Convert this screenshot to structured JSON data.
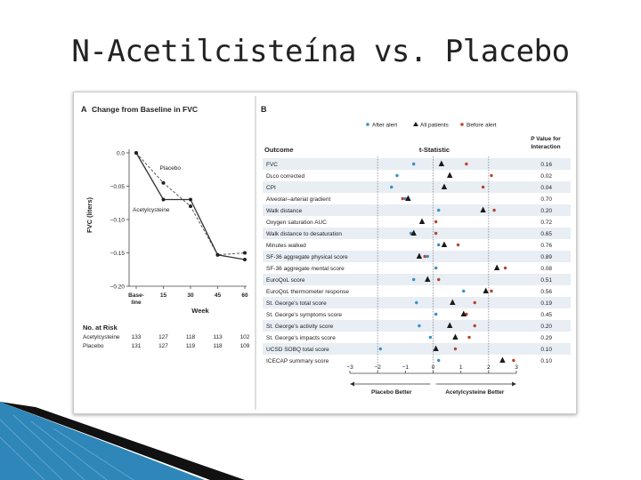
{
  "slide": {
    "title": "N-Acetilcisteína vs. Placebo"
  },
  "colors": {
    "after_alert": "#3a8fc4",
    "all_patients": "#1a1a1a",
    "before_alert": "#b5452f",
    "row_band": "#e8eef4",
    "deco_blue": "#2f86b8",
    "deco_black": "#111111"
  },
  "chart_data": [
    {
      "type": "line",
      "panel_label": "A",
      "title": "Change from Baseline in FVC",
      "ylabel": "FVC (liters)",
      "xlabel": "Week",
      "categories": [
        "Baseline",
        "15",
        "30",
        "45",
        "60"
      ],
      "x": [
        0,
        15,
        30,
        45,
        60
      ],
      "ylim": [
        -0.2,
        0.0
      ],
      "yticks": [
        "0.0",
        "−0.05",
        "−0.10",
        "−0.15",
        "−0.20"
      ],
      "ytick_values": [
        0.0,
        -0.05,
        -0.1,
        -0.15,
        -0.2
      ],
      "series": [
        {
          "name": "Placebo",
          "values": [
            0.0,
            -0.045,
            -0.08,
            -0.153,
            -0.15
          ],
          "style": "dashed"
        },
        {
          "name": "Acetylcysteine",
          "values": [
            0.0,
            -0.07,
            -0.07,
            -0.153,
            -0.16
          ],
          "style": "solid"
        }
      ],
      "at_risk": {
        "title": "No. at Risk",
        "rows": [
          {
            "label": "Acetylcysteine",
            "values": [
              "133",
              "127",
              "118",
              "113",
              "102"
            ]
          },
          {
            "label": "Placebo",
            "values": [
              "131",
              "127",
              "119",
              "118",
              "109"
            ]
          }
        ]
      }
    },
    {
      "type": "scatter",
      "panel_label": "B",
      "legend": [
        "After alert",
        "All patients",
        "Before alert"
      ],
      "legend_position": "top",
      "column_headers": {
        "outcome": "Outcome",
        "stat": "t-Statistic",
        "p": "P Value for Interaction"
      },
      "xlim": [
        -3,
        3
      ],
      "xticks": [
        "−3",
        "−2",
        "−1",
        "0",
        "1",
        "2",
        "3"
      ],
      "xtick_values": [
        -3,
        -2,
        -1,
        0,
        1,
        2,
        3
      ],
      "x_annotations": {
        "left": "Placebo Better",
        "right": "Acetylcysteine Better"
      },
      "rows": [
        {
          "outcome": "FVC",
          "after": -0.7,
          "all": 0.3,
          "before": 1.2,
          "p": "0.16"
        },
        {
          "outcome": "Dʟco corrected",
          "after": -1.3,
          "all": 0.6,
          "before": 2.1,
          "p": "0.02"
        },
        {
          "outcome": "CPI",
          "after": -1.5,
          "all": 0.4,
          "before": 1.8,
          "p": "0.04"
        },
        {
          "outcome": "Alveolar–arterial gradient",
          "after": -1.0,
          "all": -0.9,
          "before": -1.1,
          "p": "0.70"
        },
        {
          "outcome": "Walk distance",
          "after": 0.2,
          "all": 1.8,
          "before": 2.2,
          "p": "0.20"
        },
        {
          "outcome": "Oxygen saturation AUC",
          "after": -0.4,
          "all": -0.4,
          "before": 0.1,
          "p": "0.72"
        },
        {
          "outcome": "Walk distance to desaturation",
          "after": -0.8,
          "all": -0.7,
          "before": 0.1,
          "p": "0.65"
        },
        {
          "outcome": "Minutes walked",
          "after": 0.2,
          "all": 0.4,
          "before": 0.9,
          "p": "0.76"
        },
        {
          "outcome": "SF-36 aggregate physical score",
          "after": -0.2,
          "all": -0.5,
          "before": -0.3,
          "p": "0.89"
        },
        {
          "outcome": "SF-36 aggregate mental score",
          "after": 0.1,
          "all": 2.3,
          "before": 2.6,
          "p": "0.08"
        },
        {
          "outcome": "EuroQoL score",
          "after": -0.7,
          "all": -0.2,
          "before": 0.2,
          "p": "0.51"
        },
        {
          "outcome": "EuroQoL thermometer response",
          "after": 1.1,
          "all": 1.9,
          "before": 2.1,
          "p": "0.56"
        },
        {
          "outcome": "St. George's total score",
          "after": -0.6,
          "all": 0.7,
          "before": 1.5,
          "p": "0.19"
        },
        {
          "outcome": "St. George's symptoms score",
          "after": 0.1,
          "all": 1.1,
          "before": 1.2,
          "p": "0.45"
        },
        {
          "outcome": "St. George's activity score",
          "after": -0.5,
          "all": 0.6,
          "before": 1.5,
          "p": "0.20"
        },
        {
          "outcome": "St. George's impacts score",
          "after": -0.1,
          "all": 0.8,
          "before": 1.3,
          "p": "0.29"
        },
        {
          "outcome": "UCSD SOBQ total score",
          "after": -1.9,
          "all": 0.1,
          "before": 0.8,
          "p": "0.10"
        },
        {
          "outcome": "ICECAP summary score",
          "after": 0.2,
          "all": 2.5,
          "before": 2.9,
          "p": "0.10"
        }
      ]
    }
  ]
}
